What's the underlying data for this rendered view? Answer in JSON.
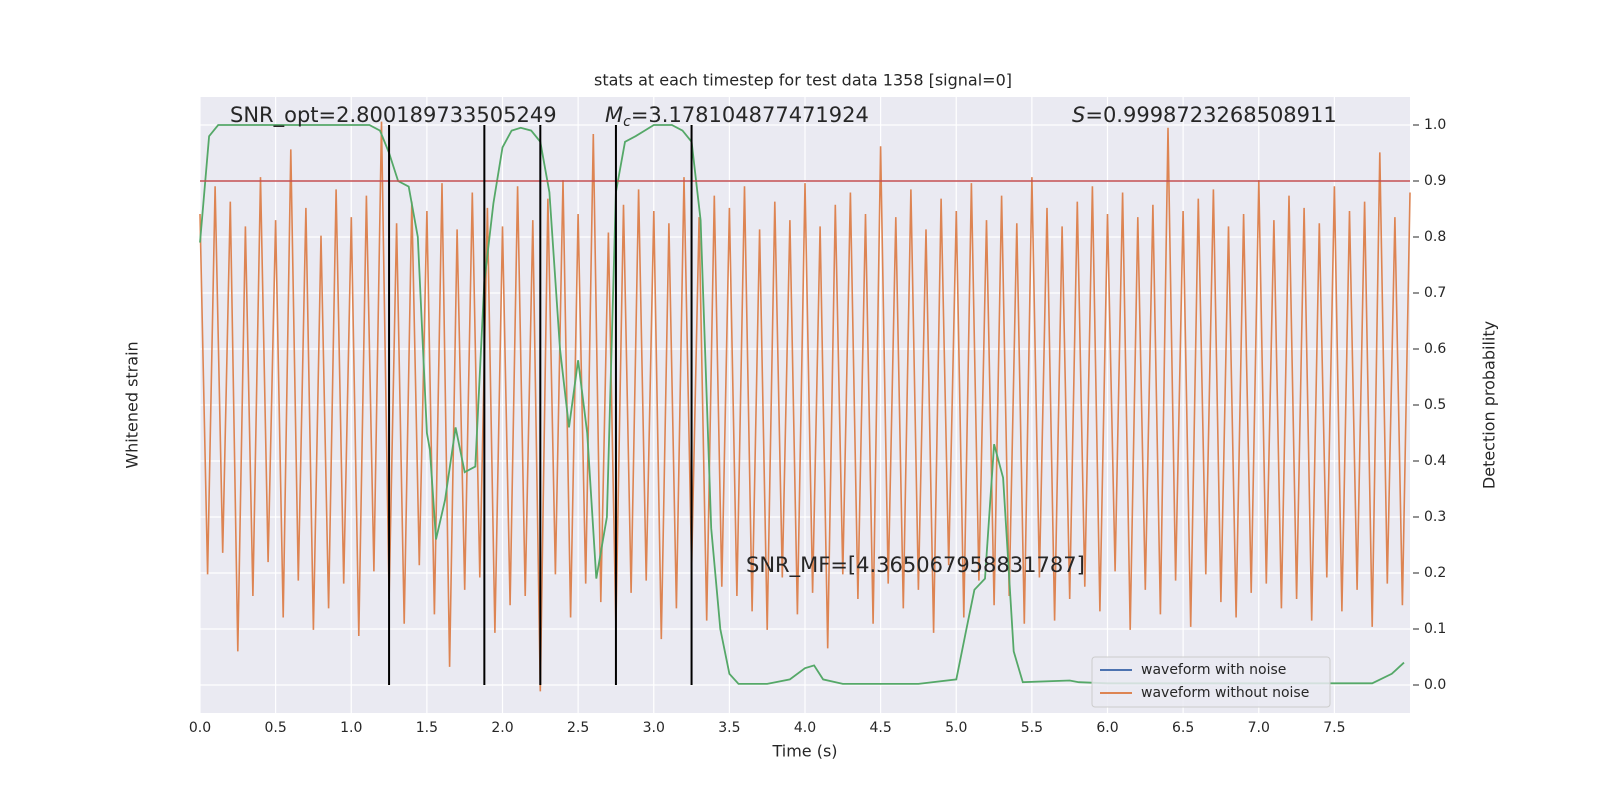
{
  "chart_data": {
    "type": "line",
    "title": "stats at each timestep for test data 1358 [signal=0]",
    "x_label": "Time (s)",
    "y_label": "Whitened strain",
    "y2_label": "Detection probability",
    "xlim": [
      0,
      8
    ],
    "ylim": [
      -1,
      1
    ],
    "y2lim": [
      -0.05,
      1.05
    ],
    "xticks": [
      {
        "value": 0,
        "label": "0.0"
      },
      0.5,
      {
        "value": 1,
        "label": "1.0"
      },
      1.5,
      {
        "value": 2,
        "label": "2.0"
      },
      2.5,
      {
        "value": 3,
        "label": "3.0"
      },
      3.5,
      {
        "value": 4,
        "label": "4.0"
      },
      4.5,
      {
        "value": 5,
        "label": "5.0"
      },
      5.5,
      {
        "value": 6,
        "label": "6.0"
      },
      6.5,
      {
        "value": 7,
        "label": "7.0"
      },
      7.5
    ],
    "y2ticks": [
      {
        "value": 0,
        "label": "0.0"
      },
      0.1,
      0.2,
      0.3,
      0.4,
      0.5,
      0.6,
      0.7,
      0.8,
      0.9,
      {
        "value": 1,
        "label": "1.0"
      }
    ],
    "grid": true,
    "legend": {
      "position": "lower right",
      "entries": [
        {
          "name": "waveform with noise",
          "color": "#4c72b0"
        },
        {
          "name": "waveform without noise",
          "color": "#dd8452"
        }
      ]
    },
    "series": [
      {
        "name": "waveform without noise",
        "color": "#dd8452",
        "axis": "y",
        "x": [
          0,
          0.05,
          0.1,
          0.15,
          0.2,
          0.25,
          0.3,
          0.35,
          0.4,
          0.45,
          0.5,
          0.55,
          0.6,
          0.65,
          0.7,
          0.75,
          0.8,
          0.85,
          0.9,
          0.95,
          1,
          1.05,
          1.1,
          1.15,
          1.2,
          1.25,
          1.3,
          1.35,
          1.4,
          1.45,
          1.5,
          1.55,
          1.6,
          1.65,
          1.7,
          1.75,
          1.8,
          1.85,
          1.9,
          1.95,
          2,
          2.05,
          2.1,
          2.15,
          2.2,
          2.25,
          2.3,
          2.35,
          2.4,
          2.45,
          2.5,
          2.55,
          2.6,
          2.65,
          2.7,
          2.75,
          2.8,
          2.85,
          2.9,
          2.95,
          3,
          3.05,
          3.1,
          3.15,
          3.2,
          3.25,
          3.3,
          3.35,
          3.4,
          3.45,
          3.5,
          3.55,
          3.6,
          3.65,
          3.7,
          3.75,
          3.8,
          3.85,
          3.9,
          3.95,
          4,
          4.05,
          4.1,
          4.15,
          4.2,
          4.25,
          4.3,
          4.35,
          4.4,
          4.45,
          4.5,
          4.55,
          4.6,
          4.65,
          4.7,
          4.75,
          4.8,
          4.85,
          4.9,
          4.95,
          5,
          5.05,
          5.1,
          5.15,
          5.2,
          5.25,
          5.3,
          5.35,
          5.4,
          5.45,
          5.5,
          5.55,
          5.6,
          5.65,
          5.7,
          5.75,
          5.8,
          5.85,
          5.9,
          5.95,
          6,
          6.05,
          6.1,
          6.15,
          6.2,
          6.25,
          6.3,
          6.35,
          6.4,
          6.45,
          6.5,
          6.55,
          6.6,
          6.65,
          6.7,
          6.75,
          6.8,
          6.85,
          6.9,
          6.95,
          7,
          7.05,
          7.1,
          7.15,
          7.2,
          7.25,
          7.3,
          7.35,
          7.4,
          7.45,
          7.5,
          7.55,
          7.6,
          7.65,
          7.7,
          7.75,
          7.8,
          7.85,
          7.9,
          7.95,
          8
        ],
        "values": [
          0.62,
          -0.55,
          0.71,
          -0.48,
          0.66,
          -0.8,
          0.58,
          -0.62,
          0.74,
          -0.51,
          0.6,
          -0.69,
          0.83,
          -0.57,
          0.64,
          -0.73,
          0.55,
          -0.66,
          0.7,
          -0.58,
          0.61,
          -0.75,
          0.68,
          -0.54,
          0.92,
          -0.63,
          0.59,
          -0.71,
          0.66,
          -0.52,
          0.63,
          -0.68,
          0.72,
          -0.85,
          0.57,
          -0.6,
          0.69,
          -0.56,
          0.64,
          -0.74,
          0.58,
          -0.65,
          0.71,
          -0.62,
          0.6,
          -0.93,
          0.67,
          -0.55,
          0.73,
          -0.69,
          0.62,
          -0.58,
          0.88,
          -0.64,
          0.56,
          -0.72,
          0.65,
          -0.61,
          0.7,
          -0.57,
          0.63,
          -0.76,
          0.59,
          -0.66,
          0.74,
          -0.53,
          0.61,
          -0.7,
          0.68,
          -0.59,
          0.64,
          -0.62,
          0.71,
          -0.67,
          0.57,
          -0.73,
          0.66,
          -0.56,
          0.6,
          -0.68,
          0.72,
          -0.61,
          0.58,
          -0.79,
          0.65,
          -0.55,
          0.69,
          -0.63,
          0.62,
          -0.71,
          0.84,
          -0.58,
          0.61,
          -0.66,
          0.7,
          -0.6,
          0.57,
          -0.74,
          0.67,
          -0.52,
          0.63,
          -0.69,
          0.72,
          -0.57,
          0.6,
          -0.65,
          0.68,
          -0.62,
          0.59,
          -0.71,
          0.74,
          -0.56,
          0.64,
          -0.7,
          0.58,
          -0.63,
          0.66,
          -0.59,
          0.71,
          -0.67,
          0.62,
          -0.54,
          0.69,
          -0.73,
          0.61,
          -0.6,
          0.65,
          -0.68,
          0.9,
          -0.57,
          0.63,
          -0.72,
          0.67,
          -0.55,
          0.7,
          -0.64,
          0.58,
          -0.69,
          0.62,
          -0.61,
          0.73,
          -0.58,
          0.6,
          -0.66,
          0.68,
          -0.63,
          0.64,
          -0.7,
          0.59,
          -0.56,
          0.71,
          -0.67,
          0.63,
          -0.6,
          0.66,
          -0.72,
          0.82,
          -0.58,
          0.61,
          -0.65,
          0.69
        ]
      },
      {
        "name": "detection probability",
        "color": "#55a868",
        "axis": "y2",
        "x": [
          0,
          0.06,
          0.12,
          0.25,
          0.5,
          0.75,
          1,
          1.12,
          1.19,
          1.25,
          1.31,
          1.38,
          1.44,
          1.5,
          1.52,
          1.56,
          1.62,
          1.69,
          1.75,
          1.82,
          1.88,
          1.94,
          2,
          2.06,
          2.12,
          2.19,
          2.25,
          2.31,
          2.38,
          2.44,
          2.5,
          2.56,
          2.62,
          2.69,
          2.75,
          2.81,
          2.88,
          2.94,
          3,
          3.06,
          3.12,
          3.19,
          3.25,
          3.31,
          3.38,
          3.44,
          3.5,
          3.56,
          3.75,
          3.9,
          4,
          4.06,
          4.12,
          4.25,
          4.5,
          4.75,
          5,
          5.06,
          5.12,
          5.19,
          5.25,
          5.31,
          5.38,
          5.44,
          5.75,
          5.81,
          6,
          6.5,
          7,
          7.5,
          7.75,
          7.88,
          7.96
        ],
        "values": [
          0.79,
          0.98,
          1,
          1,
          1,
          1,
          1,
          1,
          0.99,
          0.95,
          0.9,
          0.89,
          0.8,
          0.45,
          0.42,
          0.26,
          0.33,
          0.46,
          0.38,
          0.39,
          0.72,
          0.86,
          0.96,
          0.99,
          0.995,
          0.99,
          0.97,
          0.88,
          0.6,
          0.46,
          0.58,
          0.45,
          0.19,
          0.3,
          0.88,
          0.97,
          0.98,
          0.99,
          1,
          1,
          1,
          0.99,
          0.97,
          0.83,
          0.28,
          0.1,
          0.02,
          0.002,
          0.002,
          0.01,
          0.03,
          0.035,
          0.01,
          0.002,
          0.002,
          0.002,
          0.01,
          0.09,
          0.17,
          0.19,
          0.43,
          0.37,
          0.06,
          0.005,
          0.008,
          0.005,
          0.003,
          0.003,
          0.003,
          0.003,
          0.003,
          0.02,
          0.04
        ]
      }
    ],
    "threshold": {
      "value": 0.9,
      "color": "#c44e52",
      "axis": "y2"
    },
    "vlines": {
      "x": [
        1.25,
        1.88,
        2.25,
        2.75,
        3.25
      ],
      "range": [
        0,
        1
      ],
      "color": "#000000",
      "axis": "y2"
    },
    "annotations": {
      "snr_opt": "SNR_opt=2.800189733505249",
      "mc_symbol": "M",
      "mc_sub": "c",
      "mc_value": "=3.178104877471924",
      "s_symbol": "S",
      "s_value": "=0.9998723268508911",
      "snr_mf": "SNR_MF=[4.365067958831787]"
    }
  }
}
